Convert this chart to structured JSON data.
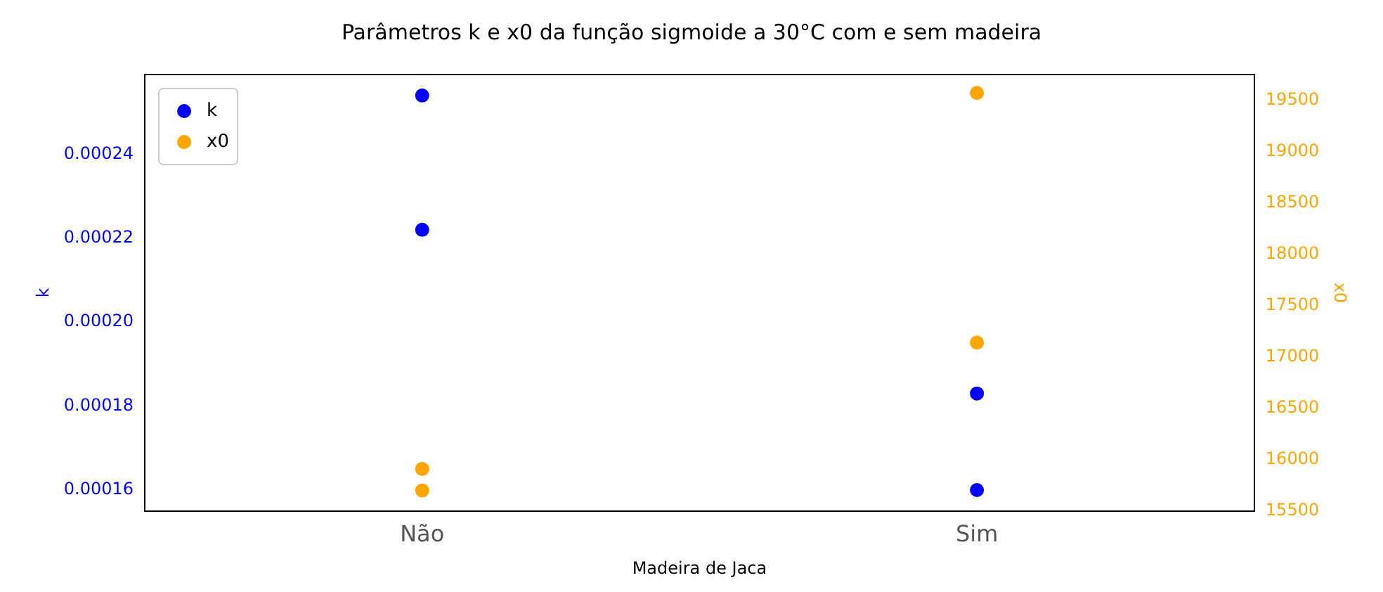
{
  "chart_data": {
    "type": "scatter",
    "title": "Parâmetros k e x0 da função sigmoide a 30°C com e sem madeira",
    "xlabel": "Madeira de Jaca",
    "ylabel": "k",
    "y2label": "x0",
    "categories": [
      "Não",
      "Sim"
    ],
    "series": [
      {
        "name": "k",
        "color": "#0000ff",
        "x": [
          "Não",
          "Não",
          "Sim",
          "Sim"
        ],
        "values": [
          0.000254,
          0.000222,
          0.000183,
          0.00016
        ]
      },
      {
        "name": "x0",
        "color": "#ffa500",
        "axis": "y2",
        "x": [
          "Não",
          "Não",
          "Sim",
          "Sim"
        ],
        "values": [
          15910,
          15700,
          19570,
          17140
        ]
      }
    ],
    "ylim": [
      0.000155,
      0.000259
    ],
    "yticks": [
      0.00016,
      0.00018,
      {
        "value": 0.0002,
        "label": "0.00020"
      },
      0.00022,
      0.00024
    ],
    "y2lim": [
      15500,
      19750
    ],
    "y2ticks": [
      15500,
      16000,
      16500,
      17000,
      17500,
      18000,
      18500,
      19000,
      19500
    ],
    "legend": "top left",
    "marker": "circle",
    "grid": false
  }
}
